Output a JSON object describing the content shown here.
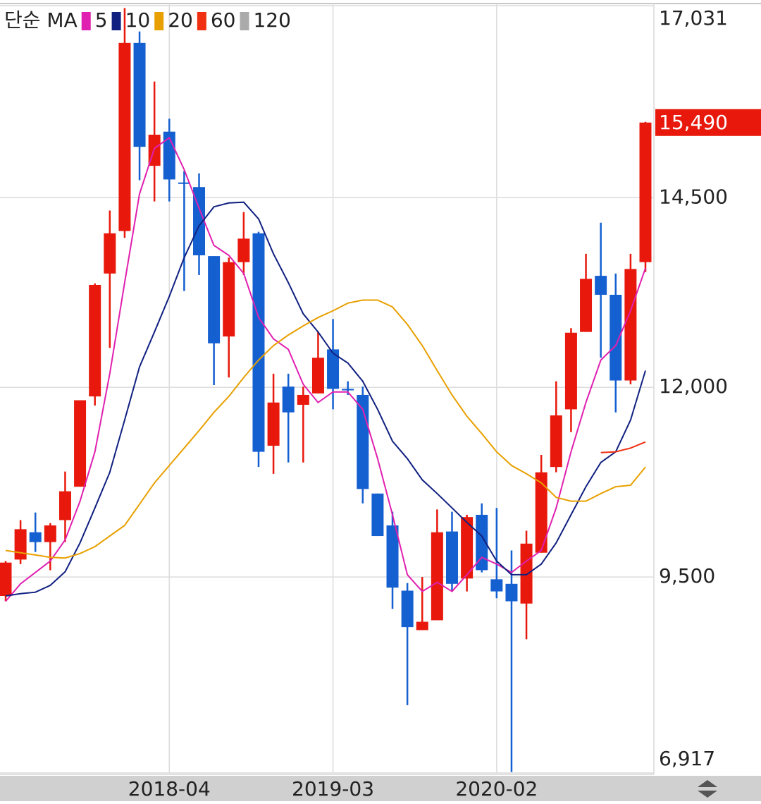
{
  "chart_data": {
    "type": "candlestick",
    "legend_title": "단순 MA",
    "categories": [
      null,
      null,
      null,
      null,
      null,
      null,
      null,
      null,
      null,
      null,
      null,
      "2018-04",
      null,
      null,
      null,
      null,
      null,
      null,
      null,
      null,
      null,
      null,
      "2019-03",
      null,
      null,
      null,
      null,
      null,
      null,
      null,
      null,
      null,
      null,
      "2020-02",
      null,
      null,
      null,
      null,
      null,
      null,
      null,
      null,
      null,
      null
    ],
    "open": [
      9250,
      9730,
      10090,
      9960,
      10250,
      10690,
      11880,
      13500,
      14060,
      16540,
      14920,
      15370,
      14700,
      14640,
      13730,
      12670,
      13650,
      14030,
      11230,
      12010,
      11770,
      11920,
      12500,
      11980,
      11900,
      10600,
      10180,
      9320,
      8800,
      8930,
      10100,
      9480,
      10320,
      9470,
      9410,
      9150,
      9820,
      10950,
      11710,
      12730,
      13470,
      13220,
      12090,
      13650
    ],
    "high": [
      9710,
      10250,
      10350,
      10210,
      10890,
      11830,
      13370,
      14330,
      17000,
      16690,
      16030,
      15540,
      14850,
      14820,
      13730,
      13710,
      14310,
      14050,
      12180,
      12180,
      12010,
      12740,
      12900,
      12080,
      12010,
      10600,
      10360,
      9420,
      9500,
      10390,
      10360,
      10320,
      10470,
      10410,
      9850,
      10110,
      11110,
      12080,
      12780,
      13760,
      14170,
      13500,
      13760,
      15500
    ],
    "low": [
      9180,
      9670,
      9830,
      9590,
      9960,
      10690,
      11760,
      12520,
      13970,
      14730,
      14450,
      14450,
      13270,
      13480,
      12030,
      12130,
      13480,
      10950,
      10860,
      11010,
      11010,
      11920,
      11710,
      11900,
      10470,
      10040,
      9080,
      7810,
      8800,
      8930,
      9310,
      9310,
      9560,
      9220,
      6930,
      8680,
      9820,
      10880,
      11410,
      12730,
      12390,
      11670,
      12040,
      13520
    ],
    "close": [
      9690,
      10130,
      9960,
      10180,
      10630,
      11830,
      13350,
      14030,
      16540,
      15170,
      15330,
      14740,
      14690,
      13740,
      12580,
      13650,
      13960,
      11150,
      11800,
      11670,
      11900,
      12390,
      11980,
      11960,
      10660,
      10040,
      9360,
      8840,
      8910,
      10090,
      9410,
      10290,
      9590,
      9310,
      9180,
      9940,
      10880,
      11630,
      12720,
      13430,
      13220,
      12090,
      13560,
      15490
    ],
    "up_color": "#e8190c",
    "down_color": "#1560d0",
    "series": [
      {
        "name": "5",
        "color": "#e020b0",
        "values": [
          9180,
          9410,
          9560,
          9710,
          9990,
          10500,
          11150,
          12180,
          13380,
          14550,
          15150,
          15290,
          14870,
          14360,
          13870,
          13740,
          13500,
          12920,
          12640,
          12500,
          12040,
          11800,
          11940,
          11940,
          11710,
          11060,
          10320,
          9530,
          9310,
          9430,
          9310,
          9530,
          9760,
          9670,
          9560,
          9710,
          9850,
          10410,
          11150,
          11800,
          12360,
          12550,
          13010,
          13570
        ]
      },
      {
        "name": "10",
        "color": "#102080",
        "values": [
          9250,
          9280,
          9300,
          9390,
          9570,
          9950,
          10410,
          10880,
          11570,
          12270,
          12730,
          13200,
          13710,
          14130,
          14380,
          14430,
          14440,
          14220,
          13760,
          13380,
          12970,
          12730,
          12450,
          12320,
          12080,
          11710,
          11290,
          11060,
          10780,
          10600,
          10410,
          10220,
          10040,
          9710,
          9530,
          9530,
          9670,
          9950,
          10320,
          10690,
          11010,
          11150,
          11570,
          12220
        ]
      },
      {
        "name": "20",
        "color": "#e8a000",
        "values": [
          9850,
          9820,
          9790,
          9760,
          9750,
          9810,
          9900,
          10040,
          10180,
          10460,
          10740,
          10970,
          11200,
          11430,
          11670,
          11880,
          12130,
          12360,
          12550,
          12690,
          12810,
          12920,
          13010,
          13110,
          13150,
          13150,
          13060,
          12830,
          12550,
          12220,
          11900,
          11620,
          11390,
          11150,
          10970,
          10860,
          10740,
          10550,
          10500,
          10500,
          10600,
          10690,
          10710,
          10950
        ]
      },
      {
        "name": "60",
        "color": "#f03010",
        "values": [
          null,
          null,
          null,
          null,
          null,
          null,
          null,
          null,
          null,
          null,
          null,
          null,
          null,
          null,
          null,
          null,
          null,
          null,
          null,
          null,
          null,
          null,
          null,
          null,
          null,
          null,
          null,
          null,
          null,
          null,
          null,
          null,
          null,
          null,
          null,
          null,
          null,
          null,
          null,
          null,
          11140,
          11150,
          11200,
          11280
        ]
      },
      {
        "name": "120",
        "color": "#aaaaaa",
        "values": [
          null,
          null,
          null,
          null,
          null,
          null,
          null,
          null,
          null,
          null,
          null,
          null,
          null,
          null,
          null,
          null,
          null,
          null,
          null,
          null,
          null,
          null,
          null,
          null,
          null,
          null,
          null,
          null,
          null,
          null,
          null,
          null,
          null,
          null,
          null,
          null,
          null,
          null,
          null,
          null,
          null,
          null,
          null,
          null
        ]
      }
    ],
    "ylim": [
      6917,
      17031
    ],
    "yticks": [
      {
        "value": 17031,
        "label": "17,031"
      },
      {
        "value": 14500,
        "label": "14,500"
      },
      {
        "value": 12000,
        "label": "12,000"
      },
      {
        "value": 9500,
        "label": "9,500"
      },
      {
        "value": 6917,
        "label": "6,917"
      }
    ],
    "last_price": {
      "value": 15490,
      "label": "15,490",
      "color": "#e8190c"
    },
    "grid": true
  }
}
